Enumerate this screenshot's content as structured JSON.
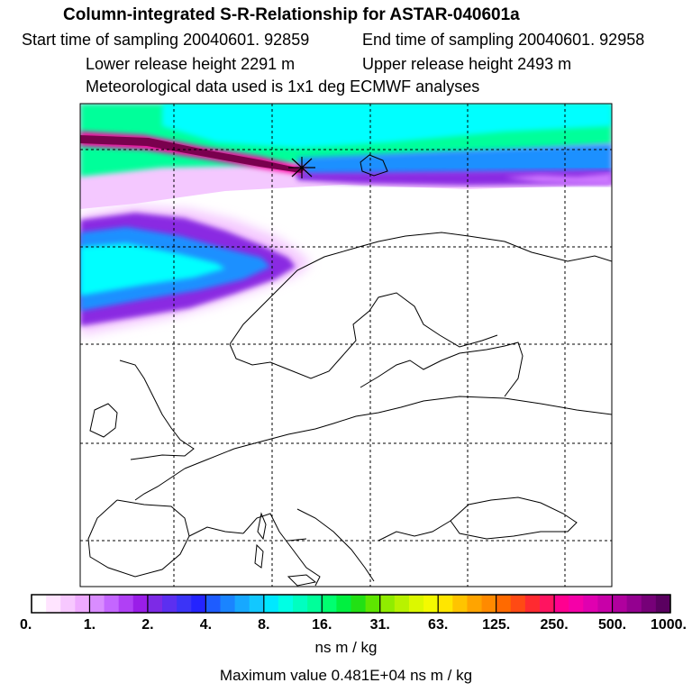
{
  "header": {
    "title": "Column-integrated S-R-Relationship for ASTAR-040601a",
    "start_time": "Start time of sampling 20040601. 92859",
    "end_time": "End time of sampling 20040601. 92958",
    "lower_height": "Lower release height 2291 m",
    "upper_height": "Upper release height 2493 m",
    "met_data": "Meteorological data used is 1x1 deg ECMWF analyses"
  },
  "colorbar": {
    "tick_labels": [
      "0.",
      "1.",
      "2.",
      "4.",
      "8.",
      "16.",
      "31.",
      "63.",
      "125.",
      "250.",
      "500.",
      "1000."
    ],
    "colors": [
      "#ffffff",
      "#ffe4ff",
      "#f7c8ff",
      "#eeaaff",
      "#d98cff",
      "#c466ff",
      "#b040f5",
      "#9a1ee8",
      "#7d2ae6",
      "#5c2ff0",
      "#3b34f7",
      "#2424ff",
      "#1e5cff",
      "#1a84ff",
      "#17a8ff",
      "#12c8ff",
      "#00e8ff",
      "#00ffe4",
      "#00ffc0",
      "#00ff9a",
      "#00ff70",
      "#00f040",
      "#22e014",
      "#5ee600",
      "#90ec00",
      "#b8f200",
      "#dcf800",
      "#f4fa00",
      "#ffe600",
      "#ffc400",
      "#ffa400",
      "#ff8a00",
      "#ff6a00",
      "#ff4a14",
      "#ff2a30",
      "#ff1460",
      "#ff0090",
      "#f500a8",
      "#e000b0",
      "#c800a8",
      "#b0009e",
      "#940090",
      "#760078",
      "#5a0060"
    ],
    "unit": "ns m / kg"
  },
  "max_value_text": "Maximum value  0.481E+04 ns m / kg",
  "map": {
    "release_site_marker": "star-icon",
    "plume_colors": [
      "#ffffff",
      "#f4c8ff",
      "#cc77ff",
      "#8a2be2",
      "#3a3af5",
      "#1e90ff",
      "#00ffff",
      "#00ff9a",
      "#ffff00",
      "#ff3030",
      "#ff00a0",
      "#7a004e"
    ]
  }
}
